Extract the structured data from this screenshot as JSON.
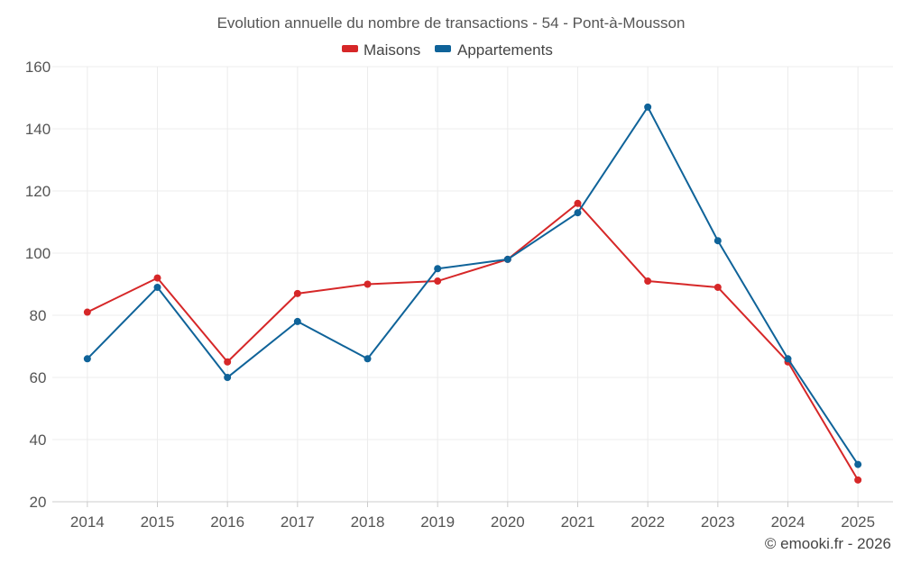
{
  "chart_data": {
    "type": "line",
    "title": "Evolution annuelle du nombre de transactions - 54 - Pont-à-Mousson",
    "categories": [
      "2014",
      "2015",
      "2016",
      "2017",
      "2018",
      "2019",
      "2020",
      "2021",
      "2022",
      "2023",
      "2024",
      "2025"
    ],
    "series": [
      {
        "name": "Maisons",
        "color": "#d62728",
        "values": [
          81,
          92,
          65,
          87,
          90,
          91,
          98,
          116,
          91,
          89,
          65,
          27
        ]
      },
      {
        "name": "Appartements",
        "color": "#0f6399",
        "values": [
          66,
          89,
          60,
          78,
          66,
          95,
          98,
          113,
          147,
          104,
          66,
          32
        ]
      }
    ],
    "ylim": [
      20,
      160
    ],
    "yticks": [
      "20",
      "40",
      "60",
      "80",
      "100",
      "120",
      "140",
      "160"
    ],
    "grid": true,
    "legend_position": "top-center",
    "xlabel": "",
    "ylabel": ""
  },
  "credit": "© emooki.fr - 2026"
}
